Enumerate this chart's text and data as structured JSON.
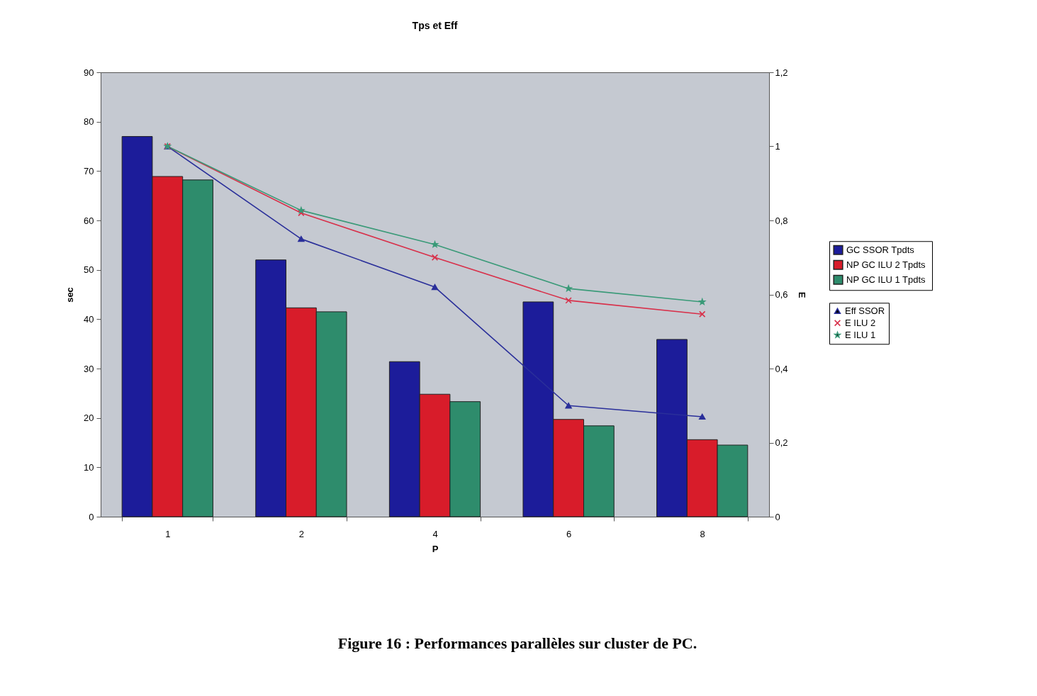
{
  "chart_data": {
    "type": "bar",
    "title": "Tps et Eff",
    "xlabel": "P",
    "ylabel": "sec",
    "y2label": "E",
    "categories": [
      "1",
      "2",
      "4",
      "6",
      "8"
    ],
    "series": [
      {
        "name": "GC SSOR Tpdts",
        "color": "#1c1c9a",
        "values": [
          77,
          52,
          31.4,
          43.5,
          35.9
        ]
      },
      {
        "name": "NP GC ILU 2  Tpdts",
        "color": "#d81c2a",
        "values": [
          68.9,
          42.3,
          24.8,
          19.7,
          15.6
        ]
      },
      {
        "name": "NP GC ILU 1  Tpdts",
        "color": "#2e8c6c",
        "values": [
          68.2,
          41.5,
          23.3,
          18.4,
          14.5
        ]
      },
      {
        "name": "Eff SSOR",
        "type": "line",
        "axis": "y2",
        "marker": "triangle",
        "color": "#2a2f9a",
        "values": [
          1,
          0.75,
          0.62,
          0.3,
          0.27
        ]
      },
      {
        "name": "E ILU 2",
        "type": "line",
        "axis": "y2",
        "marker": "cross",
        "color": "#d8304a",
        "values": [
          1,
          0.82,
          0.7,
          0.584,
          0.547
        ]
      },
      {
        "name": "E ILU 1",
        "type": "line",
        "axis": "y2",
        "marker": "star",
        "color": "#3a9a78",
        "values": [
          1,
          0.827,
          0.735,
          0.616,
          0.58
        ]
      }
    ],
    "ylim": [
      0,
      90
    ],
    "yticks": [
      0,
      10,
      20,
      30,
      40,
      50,
      60,
      70,
      80,
      90
    ],
    "y2lim": [
      0,
      1.2
    ],
    "y2ticks": [
      0,
      {
        "value": 0.2,
        "label": "0,2"
      },
      {
        "value": 0.4,
        "label": "0,4"
      },
      {
        "value": 0.6,
        "label": "0,6"
      },
      {
        "value": 0.8,
        "label": "0,8"
      },
      1,
      {
        "value": 1.2,
        "label": "1,2"
      }
    ],
    "legend": "right",
    "annotations": [
      "Figure 16 : Performances parallèles sur cluster de PC."
    ]
  }
}
